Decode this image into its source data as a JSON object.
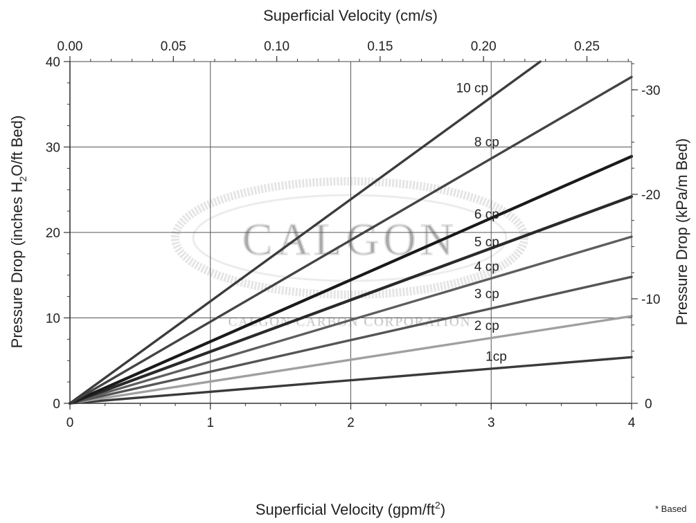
{
  "chart_data": {
    "type": "line",
    "title": "",
    "x_bottom": {
      "label": "Superficial Velocity (gpm/ft",
      "label_sup": "2",
      "label_end": ")",
      "range": [
        0,
        4
      ],
      "ticks": [
        0,
        1,
        2,
        3,
        4
      ],
      "tick_labels": [
        "0",
        "1",
        "2",
        "3",
        "4"
      ]
    },
    "x_top": {
      "label": "Superficial Velocity (cm/s)",
      "range_cms": [
        0,
        0.2716
      ],
      "ticks": [
        0,
        0.05,
        0.1,
        0.15,
        0.2,
        0.25
      ],
      "tick_labels": [
        "0.00",
        "0.05",
        "0.10",
        "0.15",
        "0.20",
        "0.25"
      ]
    },
    "y_left": {
      "label": "Pressure Drop (inches H",
      "label_sub": "2",
      "label_end": "O/ft Bed)",
      "range": [
        0,
        40
      ],
      "ticks": [
        0,
        10,
        20,
        30,
        40
      ],
      "tick_labels": [
        "0",
        "10",
        "20",
        "30",
        "40"
      ]
    },
    "y_right": {
      "label": "Pressure Drop (kPa/m Bed)",
      "kpa_per_inch_ft": 0.8176,
      "ticks": [
        0,
        10,
        20,
        30
      ],
      "tick_labels": [
        "0",
        "10",
        "20",
        "30"
      ]
    },
    "grid": true,
    "series": [
      {
        "name": "1cp",
        "x": [
          0,
          4
        ],
        "y": [
          0,
          5.4
        ],
        "color": "#3a3a3a"
      },
      {
        "name": "2 cp",
        "x": [
          0,
          4
        ],
        "y": [
          0,
          10.2
        ],
        "color": "#a0a0a0"
      },
      {
        "name": "3 cp",
        "x": [
          0,
          4
        ],
        "y": [
          0,
          14.8
        ],
        "color": "#555555"
      },
      {
        "name": "4 cp",
        "x": [
          0,
          4
        ],
        "y": [
          0,
          19.5
        ],
        "color": "#5e5e5e"
      },
      {
        "name": "5 cp",
        "x": [
          0,
          4
        ],
        "y": [
          0,
          24.2
        ],
        "color": "#2a2a2a"
      },
      {
        "name": "6 cp",
        "x": [
          0,
          4
        ],
        "y": [
          0,
          28.9
        ],
        "color": "#1a1a1a"
      },
      {
        "name": "8 cp",
        "x": [
          0,
          4
        ],
        "y": [
          0,
          38.2
        ],
        "color": "#444444"
      },
      {
        "name": "10 cp",
        "x": [
          0,
          3.35
        ],
        "y": [
          0,
          40
        ],
        "color": "#3c3c3c"
      }
    ],
    "labels": [
      {
        "text": "10 cp",
        "x": 2.75,
        "y": 36.4
      },
      {
        "text": "8 cp",
        "x": 2.88,
        "y": 30.1
      },
      {
        "text": "6 cp",
        "x": 2.88,
        "y": 21.6
      },
      {
        "text": "5 cp",
        "x": 2.88,
        "y": 18.4
      },
      {
        "text": "4 cp",
        "x": 2.88,
        "y": 15.5
      },
      {
        "text": "3 cp",
        "x": 2.88,
        "y": 12.3
      },
      {
        "text": "2 cp",
        "x": 2.88,
        "y": 8.6
      },
      {
        "text": "1cp",
        "x": 2.96,
        "y": 5.0
      }
    ],
    "footnote": "* Based",
    "watermark": {
      "logo": "CALGON",
      "company": "CALGON CARBON CORPORATION"
    }
  }
}
